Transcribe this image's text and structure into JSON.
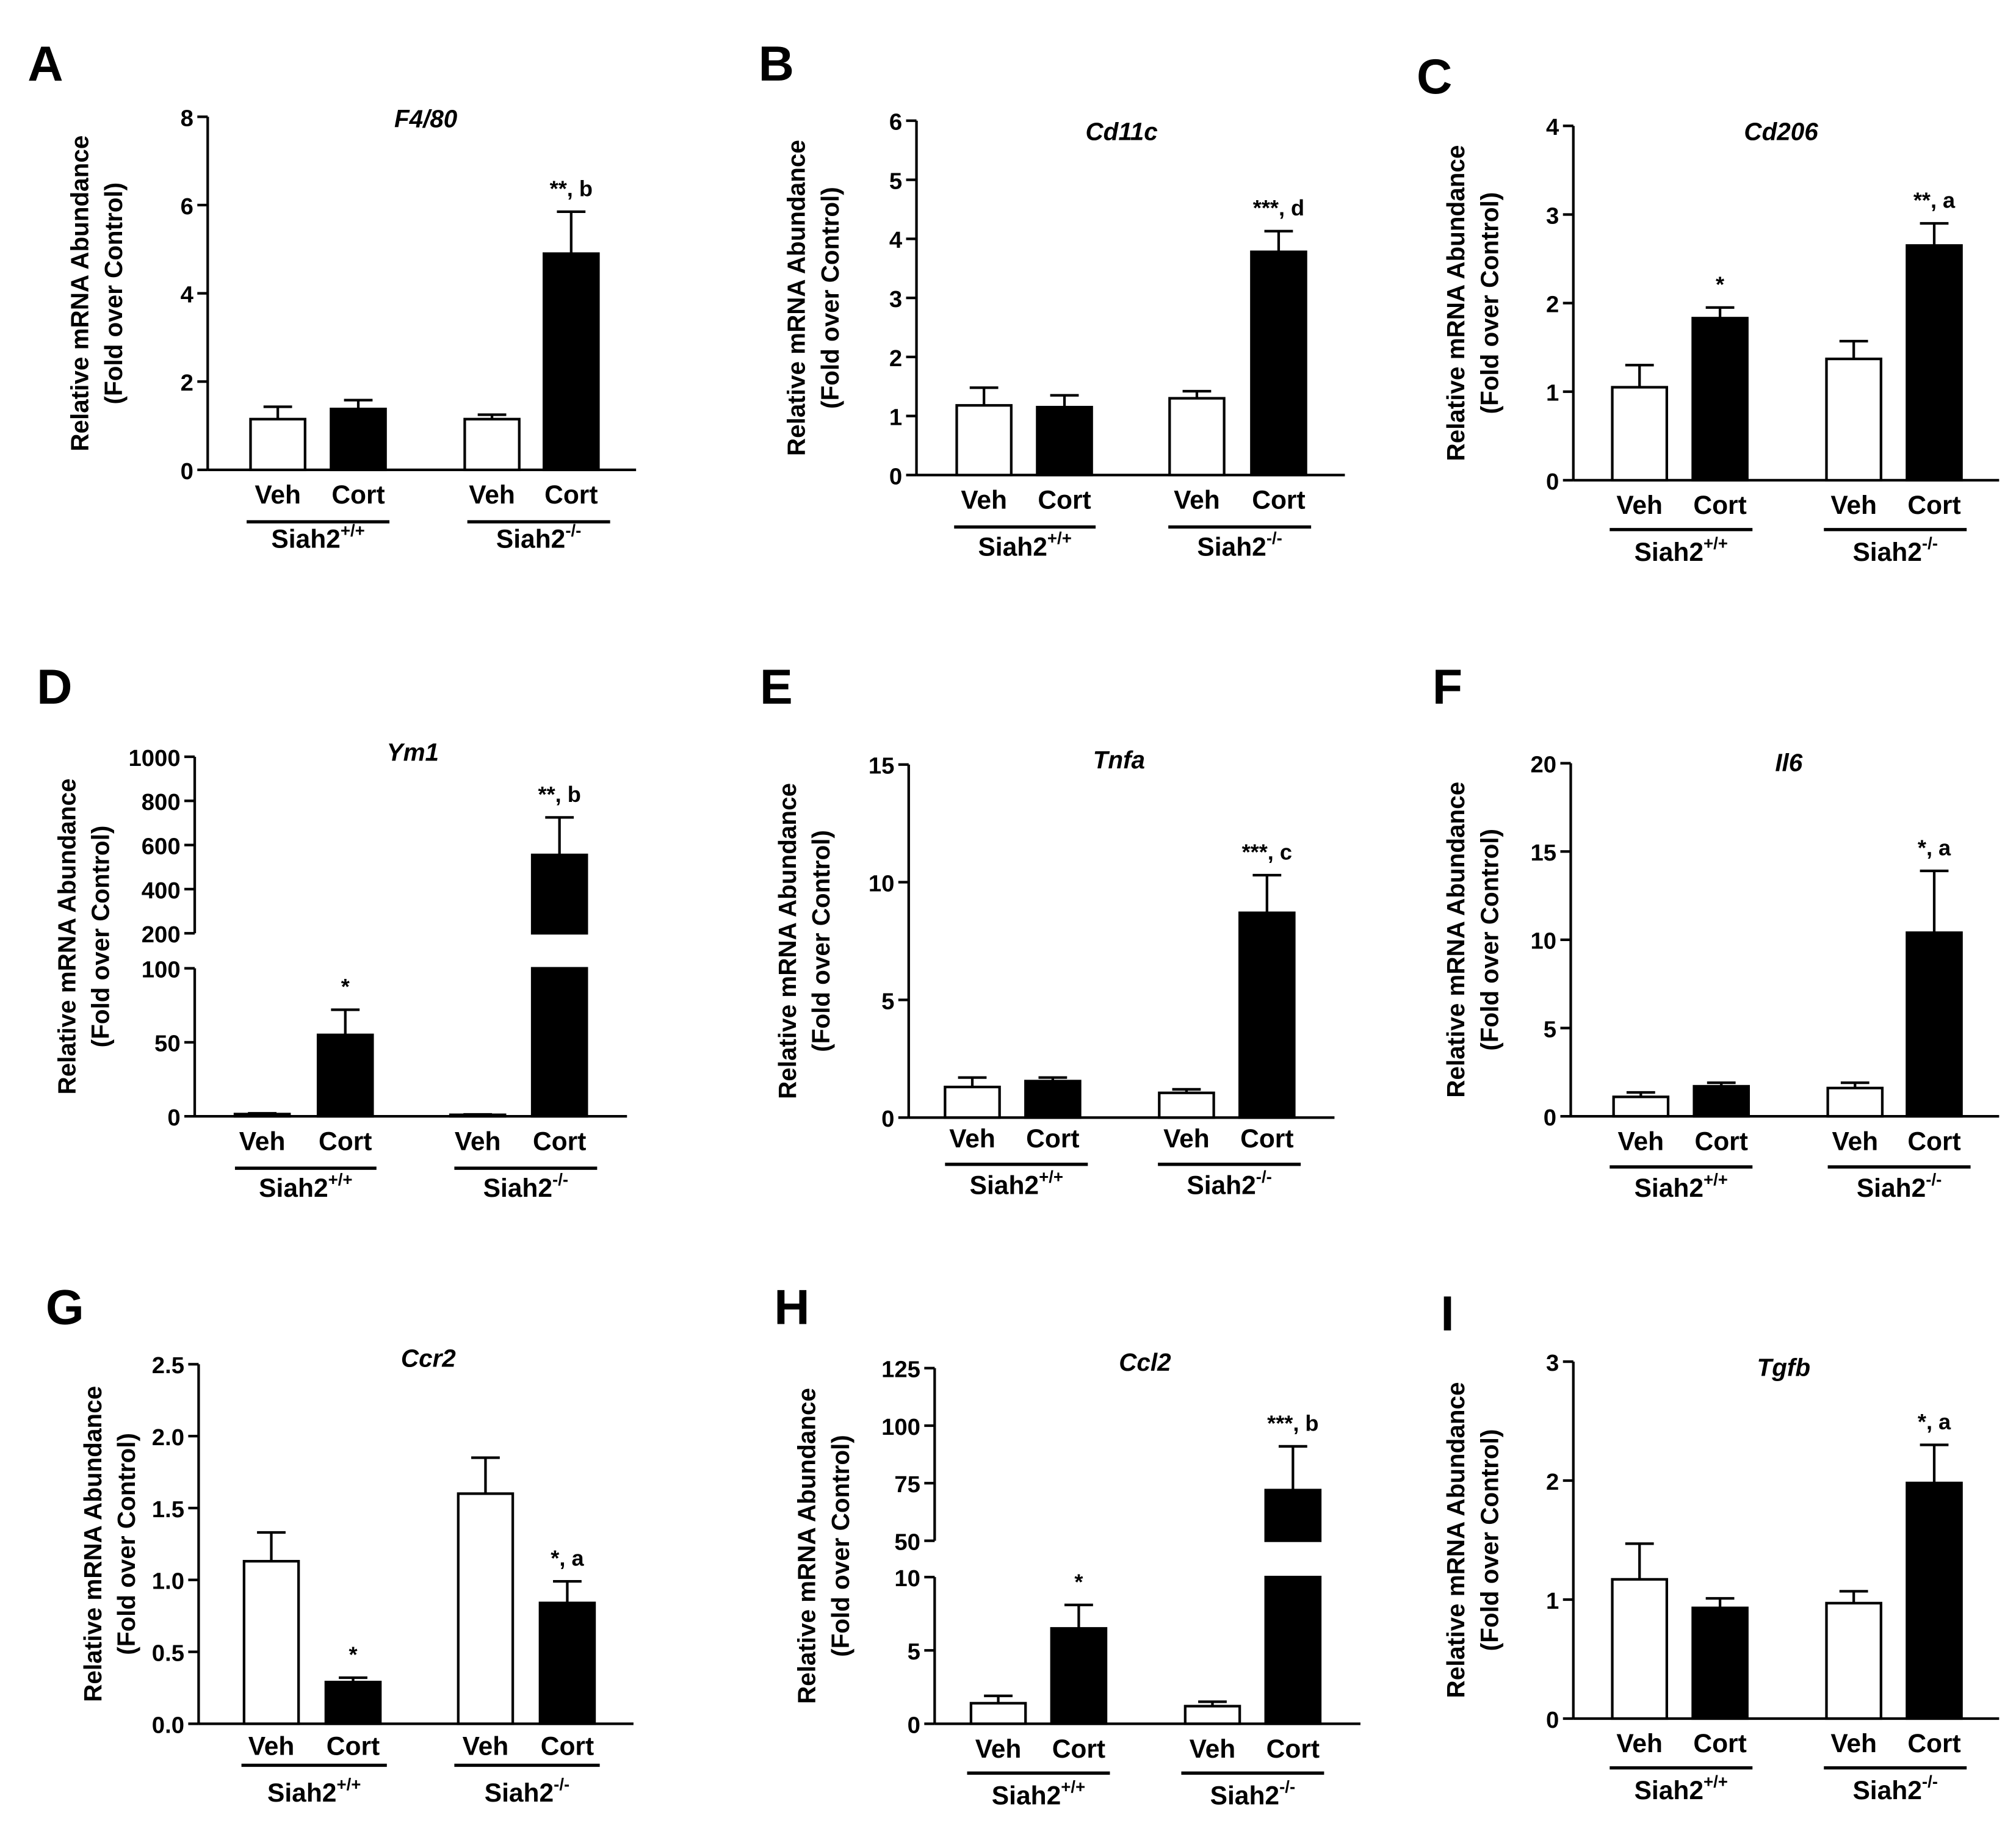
{
  "chart_data": [
    {
      "type": "bar",
      "panel": "A",
      "title": "F4/80",
      "ylabel": [
        "Relative mRNA Abundance",
        "(Fold over Control)"
      ],
      "ylim": [
        0,
        8
      ],
      "yticks": [
        "0",
        "2",
        "4",
        "6",
        "8"
      ],
      "categories": [
        "Veh",
        "Cort",
        "Veh",
        "Cort"
      ],
      "groups": [
        {
          "name": "Siah2",
          "sup": "+/+"
        },
        {
          "name": "Siah2",
          "sup": "-/-"
        }
      ],
      "values": [
        1.15,
        1.38,
        1.15,
        4.9
      ],
      "errors": [
        0.28,
        0.2,
        0.1,
        0.95
      ],
      "fills": [
        "#ffffff",
        "#000000",
        "#ffffff",
        "#000000"
      ],
      "annotations": [
        "",
        "",
        "",
        "**, b"
      ]
    },
    {
      "type": "bar",
      "panel": "B",
      "title": "Cd11c",
      "ylabel": [
        "Relative mRNA Abundance",
        "(Fold over Control)"
      ],
      "ylim": [
        0,
        6
      ],
      "yticks": [
        "0",
        "1",
        "2",
        "3",
        "4",
        "5",
        "6"
      ],
      "categories": [
        "Veh",
        "Cort",
        "Veh",
        "Cort"
      ],
      "groups": [
        {
          "name": "Siah2",
          "sup": "+/+"
        },
        {
          "name": "Siah2",
          "sup": "-/-"
        }
      ],
      "values": [
        1.18,
        1.15,
        1.3,
        3.78
      ],
      "errors": [
        0.3,
        0.2,
        0.12,
        0.35
      ],
      "fills": [
        "#ffffff",
        "#000000",
        "#ffffff",
        "#000000"
      ],
      "annotations": [
        "",
        "",
        "",
        "***, d"
      ]
    },
    {
      "type": "bar",
      "panel": "C",
      "title": "Cd206",
      "ylabel": [
        "Relative mRNA Abundance",
        "(Fold over Control)"
      ],
      "ylim": [
        0,
        4
      ],
      "yticks": [
        "0",
        "1",
        "2",
        "3",
        "4"
      ],
      "categories": [
        "Veh",
        "Cort",
        "Veh",
        "Cort"
      ],
      "groups": [
        {
          "name": "Siah2",
          "sup": "+/+"
        },
        {
          "name": "Siah2",
          "sup": "-/-"
        }
      ],
      "values": [
        1.05,
        1.83,
        1.37,
        2.65
      ],
      "errors": [
        0.25,
        0.12,
        0.2,
        0.25
      ],
      "fills": [
        "#ffffff",
        "#000000",
        "#ffffff",
        "#000000"
      ],
      "annotations": [
        "",
        "*",
        "",
        "**, a"
      ]
    },
    {
      "type": "bar",
      "panel": "D",
      "title": "Ym1",
      "ylabel": [
        "Relative mRNA Abundance",
        "(Fold over Control)"
      ],
      "axis_break": true,
      "lower_range": [
        0,
        100
      ],
      "lower_ticks": [
        "0",
        "50",
        "100"
      ],
      "upper_range": [
        200,
        1000
      ],
      "upper_ticks": [
        "200",
        "400",
        "600",
        "800",
        "1000"
      ],
      "categories": [
        "Veh",
        "Cort",
        "Veh",
        "Cort"
      ],
      "groups": [
        {
          "name": "Siah2",
          "sup": "+/+"
        },
        {
          "name": "Siah2",
          "sup": "-/-"
        }
      ],
      "values": [
        1.5,
        55,
        1,
        555
      ],
      "errors": [
        0.5,
        17,
        0.3,
        170
      ],
      "fills": [
        "#ffffff",
        "#000000",
        "#ffffff",
        "#000000"
      ],
      "annotations": [
        "",
        "*",
        "",
        "**, b"
      ]
    },
    {
      "type": "bar",
      "panel": "E",
      "title": "Tnfa",
      "ylabel": [
        "Relative mRNA Abundance",
        "(Fold over Control)"
      ],
      "ylim": [
        0,
        15
      ],
      "yticks": [
        "0",
        "5",
        "10",
        "15"
      ],
      "categories": [
        "Veh",
        "Cort",
        "Veh",
        "Cort"
      ],
      "groups": [
        {
          "name": "Siah2",
          "sup": "+/+"
        },
        {
          "name": "Siah2",
          "sup": "-/-"
        }
      ],
      "values": [
        1.3,
        1.55,
        1.05,
        8.7
      ],
      "errors": [
        0.4,
        0.15,
        0.15,
        1.6
      ],
      "fills": [
        "#ffffff",
        "#000000",
        "#ffffff",
        "#000000"
      ],
      "annotations": [
        "",
        "",
        "",
        "***, c"
      ]
    },
    {
      "type": "bar",
      "panel": "F",
      "title": "Il6",
      "ylabel": [
        "Relative mRNA Abundance",
        "(Fold over Control)"
      ],
      "ylim": [
        0,
        20
      ],
      "yticks": [
        "0",
        "5",
        "10",
        "15",
        "20"
      ],
      "categories": [
        "Veh",
        "Cort",
        "Veh",
        "Cort"
      ],
      "groups": [
        {
          "name": "Siah2",
          "sup": "+/+"
        },
        {
          "name": "Siah2",
          "sup": "-/-"
        }
      ],
      "values": [
        1.1,
        1.7,
        1.6,
        10.4
      ],
      "errors": [
        0.25,
        0.2,
        0.3,
        3.5
      ],
      "fills": [
        "#ffffff",
        "#000000",
        "#ffffff",
        "#000000"
      ],
      "annotations": [
        "",
        "",
        "",
        "*, a"
      ]
    },
    {
      "type": "bar",
      "panel": "G",
      "title": "Ccr2",
      "ylabel": [
        "Relative mRNA Abundance",
        "(Fold over Control)"
      ],
      "ylim": [
        0,
        2.5
      ],
      "yticks": [
        "0.0",
        "0.5",
        "1.0",
        "1.5",
        "2.0",
        "2.5"
      ],
      "categories": [
        "Veh",
        "Cort",
        "Veh",
        "Cort"
      ],
      "groups": [
        {
          "name": "Siah2",
          "sup": "+/+"
        },
        {
          "name": "Siah2",
          "sup": "-/-"
        }
      ],
      "values": [
        1.13,
        0.29,
        1.6,
        0.84
      ],
      "errors": [
        0.2,
        0.03,
        0.25,
        0.15
      ],
      "fills": [
        "#ffffff",
        "#000000",
        "#ffffff",
        "#000000"
      ],
      "annotations": [
        "",
        "*",
        "",
        "*, a"
      ]
    },
    {
      "type": "bar",
      "panel": "H",
      "title": "Ccl2",
      "ylabel": [
        "Relative mRNA Abundance",
        "(Fold over Control)"
      ],
      "axis_break": true,
      "lower_range": [
        0,
        10
      ],
      "lower_ticks": [
        "0",
        "5",
        "10"
      ],
      "upper_range": [
        50,
        125
      ],
      "upper_ticks": [
        "50",
        "75",
        "100",
        "125"
      ],
      "categories": [
        "Veh",
        "Cort",
        "Veh",
        "Cort"
      ],
      "groups": [
        {
          "name": "Siah2",
          "sup": "+/+"
        },
        {
          "name": "Siah2",
          "sup": "-/-"
        }
      ],
      "values": [
        1.4,
        6.5,
        1.2,
        72
      ],
      "errors": [
        0.5,
        1.6,
        0.3,
        19
      ],
      "fills": [
        "#ffffff",
        "#000000",
        "#ffffff",
        "#000000"
      ],
      "annotations": [
        "",
        "*",
        "",
        "***, b"
      ]
    },
    {
      "type": "bar",
      "panel": "I",
      "title": "Tgfb",
      "ylabel": [
        "Relative mRNA Abundance",
        "(Fold over Control)"
      ],
      "ylim": [
        0,
        3
      ],
      "yticks": [
        "0",
        "1",
        "2",
        "3"
      ],
      "categories": [
        "Veh",
        "Cort",
        "Veh",
        "Cort"
      ],
      "groups": [
        {
          "name": "Siah2",
          "sup": "+/+"
        },
        {
          "name": "Siah2",
          "sup": "-/-"
        }
      ],
      "values": [
        1.17,
        0.93,
        0.97,
        1.98
      ],
      "errors": [
        0.3,
        0.08,
        0.1,
        0.32
      ],
      "fills": [
        "#ffffff",
        "#000000",
        "#ffffff",
        "#000000"
      ],
      "annotations": [
        "",
        "",
        "",
        "*, a"
      ]
    }
  ]
}
